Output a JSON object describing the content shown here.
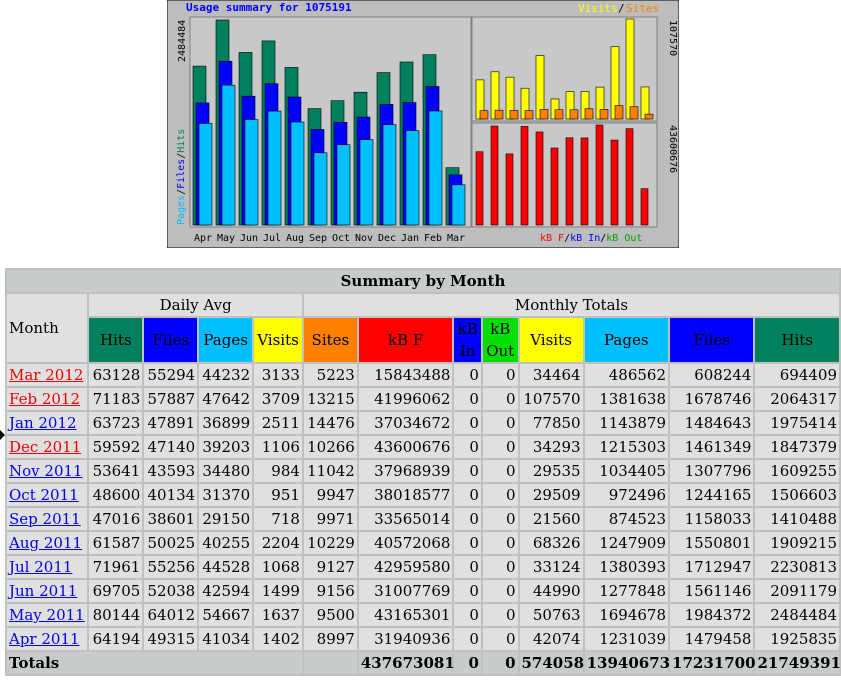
{
  "chart": {
    "title": "Usage summary for 1075191",
    "legend_visits": "Visits",
    "legend_sites": "Sites",
    "left_axis_max": "2484484",
    "right_top_max": "107570",
    "right_bottom_max": "43600676",
    "left_legend": {
      "pages": "Pages",
      "files": "Files",
      "hits": "Hits",
      "sep": "/"
    },
    "bottom_legend": {
      "kbf": "kB F",
      "kbin": "kB In",
      "kbout": "kB Out",
      "sep": "/"
    },
    "colors": {
      "hits": "#00805c",
      "files": "#0000ff",
      "pages": "#00bfff",
      "visits": "#ffff00",
      "sites": "#ff8000",
      "kbf": "#ff0000",
      "kbin": "#0000ff",
      "kbout": "#00e000",
      "panel": "#c8c8c8",
      "frame": "#bdbdbd"
    }
  },
  "chart_data": {
    "type": "bar",
    "title": "Usage summary for 1075191",
    "categories": [
      "Apr",
      "May",
      "Jun",
      "Jul",
      "Aug",
      "Sep",
      "Oct",
      "Nov",
      "Dec",
      "Jan",
      "Feb",
      "Mar"
    ],
    "series": [
      {
        "name": "Hits",
        "values": [
          1925835,
          2484484,
          2091179,
          2230813,
          1909215,
          1410488,
          1506603,
          1609255,
          1847379,
          1975414,
          2064317,
          694409
        ]
      },
      {
        "name": "Files",
        "values": [
          1479458,
          1984372,
          1561146,
          1712947,
          1550801,
          1158033,
          1244165,
          1307796,
          1461349,
          1484643,
          1678746,
          608244
        ]
      },
      {
        "name": "Pages",
        "values": [
          1231039,
          1694678,
          1277848,
          1380393,
          1247909,
          874523,
          972496,
          1034405,
          1215303,
          1143879,
          1381638,
          486562
        ]
      },
      {
        "name": "Visits",
        "values": [
          42074,
          50763,
          44990,
          33124,
          68326,
          21560,
          29509,
          29535,
          34293,
          77850,
          107570,
          34464
        ]
      },
      {
        "name": "Sites",
        "values": [
          8997,
          9500,
          9156,
          9127,
          10229,
          9971,
          9947,
          11042,
          10266,
          14476,
          13215,
          5223
        ]
      },
      {
        "name": "kB F",
        "values": [
          31940936,
          43165301,
          31007769,
          42959580,
          40572068,
          33565014,
          38018577,
          37968939,
          43600676,
          37034672,
          41996062,
          15843488
        ]
      },
      {
        "name": "kB In",
        "values": [
          0,
          0,
          0,
          0,
          0,
          0,
          0,
          0,
          0,
          0,
          0,
          0
        ]
      },
      {
        "name": "kB Out",
        "values": [
          0,
          0,
          0,
          0,
          0,
          0,
          0,
          0,
          0,
          0,
          0,
          0
        ]
      }
    ],
    "ylim_left": [
      0,
      2484484
    ],
    "ylim_right_top": [
      0,
      107570
    ],
    "ylim_right_bottom": [
      0,
      43600676
    ],
    "grid": false
  },
  "table": {
    "title": "Summary by Month",
    "month_header": "Month",
    "group_daily": "Daily Avg",
    "group_monthly": "Monthly Totals",
    "daily_cols": [
      "Hits",
      "Files",
      "Pages",
      "Visits"
    ],
    "monthly_cols": [
      "Sites",
      "kB F",
      "kB In",
      "kB Out",
      "Visits",
      "Pages",
      "Files",
      "Hits"
    ],
    "rows": [
      {
        "month": "Mar 2012",
        "hot": true,
        "values": [
          "63128",
          "55294",
          "44232",
          "3133",
          "5223",
          "15843488",
          "0",
          "0",
          "34464",
          "486562",
          "608244",
          "694409"
        ]
      },
      {
        "month": "Feb 2012",
        "hot": true,
        "values": [
          "71183",
          "57887",
          "47642",
          "3709",
          "13215",
          "41996062",
          "0",
          "0",
          "107570",
          "1381638",
          "1678746",
          "2064317"
        ]
      },
      {
        "month": "Jan 2012",
        "hot": false,
        "values": [
          "63723",
          "47891",
          "36899",
          "2511",
          "14476",
          "37034672",
          "0",
          "0",
          "77850",
          "1143879",
          "1484643",
          "1975414"
        ]
      },
      {
        "month": "Dec 2011",
        "hot": true,
        "values": [
          "59592",
          "47140",
          "39203",
          "1106",
          "10266",
          "43600676",
          "0",
          "0",
          "34293",
          "1215303",
          "1461349",
          "1847379"
        ]
      },
      {
        "month": "Nov 2011",
        "hot": false,
        "values": [
          "53641",
          "43593",
          "34480",
          "984",
          "11042",
          "37968939",
          "0",
          "0",
          "29535",
          "1034405",
          "1307796",
          "1609255"
        ]
      },
      {
        "month": "Oct 2011",
        "hot": false,
        "values": [
          "48600",
          "40134",
          "31370",
          "951",
          "9947",
          "38018577",
          "0",
          "0",
          "29509",
          "972496",
          "1244165",
          "1506603"
        ]
      },
      {
        "month": "Sep 2011",
        "hot": false,
        "values": [
          "47016",
          "38601",
          "29150",
          "718",
          "9971",
          "33565014",
          "0",
          "0",
          "21560",
          "874523",
          "1158033",
          "1410488"
        ]
      },
      {
        "month": "Aug 2011",
        "hot": false,
        "values": [
          "61587",
          "50025",
          "40255",
          "2204",
          "10229",
          "40572068",
          "0",
          "0",
          "68326",
          "1247909",
          "1550801",
          "1909215"
        ]
      },
      {
        "month": "Jul 2011",
        "hot": false,
        "values": [
          "71961",
          "55256",
          "44528",
          "1068",
          "9127",
          "42959580",
          "0",
          "0",
          "33124",
          "1380393",
          "1712947",
          "2230813"
        ]
      },
      {
        "month": "Jun 2011",
        "hot": false,
        "values": [
          "69705",
          "52038",
          "42594",
          "1499",
          "9156",
          "31007769",
          "0",
          "0",
          "44990",
          "1277848",
          "1561146",
          "2091179"
        ]
      },
      {
        "month": "May 2011",
        "hot": false,
        "values": [
          "80144",
          "64012",
          "54667",
          "1637",
          "9500",
          "43165301",
          "0",
          "0",
          "50763",
          "1694678",
          "1984372",
          "2484484"
        ]
      },
      {
        "month": "Apr 2011",
        "hot": false,
        "values": [
          "64194",
          "49315",
          "41034",
          "1402",
          "8997",
          "31940936",
          "0",
          "0",
          "42074",
          "1231039",
          "1479458",
          "1925835"
        ]
      }
    ],
    "totals_label": "Totals",
    "totals": [
      "437673081",
      "0",
      "0",
      "574058",
      "13940673",
      "17231700",
      "21749391"
    ]
  }
}
